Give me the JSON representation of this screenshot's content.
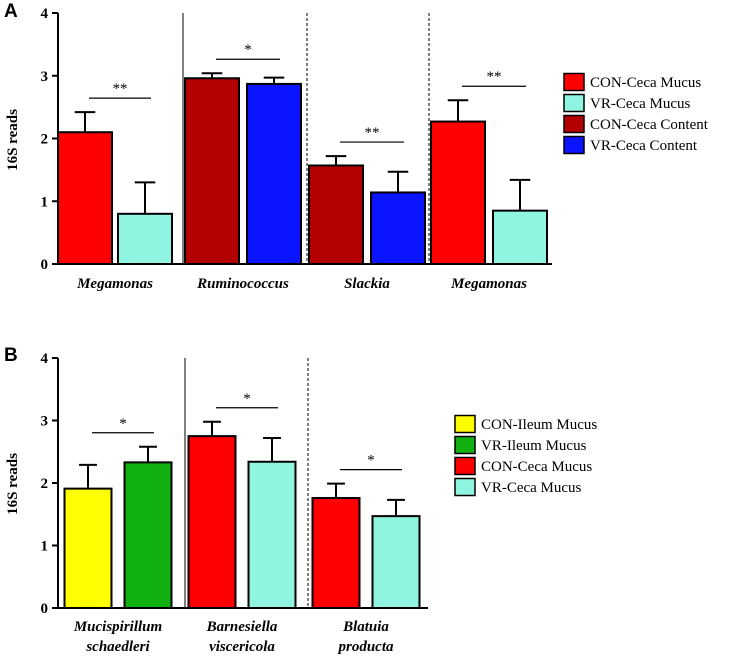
{
  "chart_data": [
    {
      "type": "bar",
      "panel": "A",
      "ylabel": "16S reads",
      "ylim": [
        0,
        4
      ],
      "yticks": [
        "0",
        "1",
        "2",
        "3",
        "4"
      ],
      "groups": [
        {
          "label_lines": [
            "Megamonas"
          ],
          "significance": "**",
          "bars": [
            {
              "series": 0,
              "value": 2.1,
              "error": 0.32
            },
            {
              "series": 1,
              "value": 0.8,
              "error": 0.5
            }
          ]
        },
        {
          "label_lines": [
            "Ruminococcus"
          ],
          "significance": "*",
          "bars": [
            {
              "series": 2,
              "value": 2.96,
              "error": 0.08
            },
            {
              "series": 3,
              "value": 2.87,
              "error": 0.1
            }
          ]
        },
        {
          "label_lines": [
            "Slackia"
          ],
          "significance": "**",
          "bars": [
            {
              "series": 2,
              "value": 1.57,
              "error": 0.15
            },
            {
              "series": 3,
              "value": 1.14,
              "error": 0.33
            }
          ]
        },
        {
          "label_lines": [
            "Megamonas"
          ],
          "significance": "**",
          "bars": [
            {
              "series": 0,
              "value": 2.27,
              "error": 0.34
            },
            {
              "series": 1,
              "value": 0.85,
              "error": 0.49
            }
          ]
        }
      ],
      "group_separators": [
        "solid",
        "dashed",
        "dashed"
      ],
      "series": [
        {
          "name": "CON-Ceca Mucus",
          "color": "#ff0000"
        },
        {
          "name": "VR-Ceca Mucus",
          "color": "#8ff5e0"
        },
        {
          "name": "CON-Ceca Content",
          "color": "#b30000"
        },
        {
          "name": "VR-Ceca  Content",
          "color": "#0a14ff"
        }
      ]
    },
    {
      "type": "bar",
      "panel": "B",
      "ylabel": "16S reads",
      "ylim": [
        0,
        4
      ],
      "yticks": [
        "0",
        "1",
        "2",
        "3",
        "4"
      ],
      "groups": [
        {
          "label_lines": [
            "Mucispirillum",
            "schaedleri"
          ],
          "significance": "*",
          "bars": [
            {
              "series": 0,
              "value": 1.91,
              "error": 0.38
            },
            {
              "series": 1,
              "value": 2.33,
              "error": 0.25
            }
          ]
        },
        {
          "label_lines": [
            "Barnesiella",
            "viscericola"
          ],
          "significance": "*",
          "bars": [
            {
              "series": 2,
              "value": 2.75,
              "error": 0.23
            },
            {
              "series": 3,
              "value": 2.34,
              "error": 0.38
            }
          ]
        },
        {
          "label_lines": [
            "Blatuia",
            "producta"
          ],
          "significance": "*",
          "bars": [
            {
              "series": 2,
              "value": 1.76,
              "error": 0.23
            },
            {
              "series": 3,
              "value": 1.47,
              "error": 0.26
            }
          ]
        }
      ],
      "group_separators": [
        "solid",
        "dashed"
      ],
      "series": [
        {
          "name": "CON-Ileum Mucus",
          "color": "#ffff00"
        },
        {
          "name": "VR-Ileum Mucus",
          "color": "#10b010"
        },
        {
          "name": "CON-Ceca Mucus",
          "color": "#ff0000"
        },
        {
          "name": "VR-Ceca Mucus",
          "color": "#8ff5e0"
        }
      ]
    }
  ]
}
